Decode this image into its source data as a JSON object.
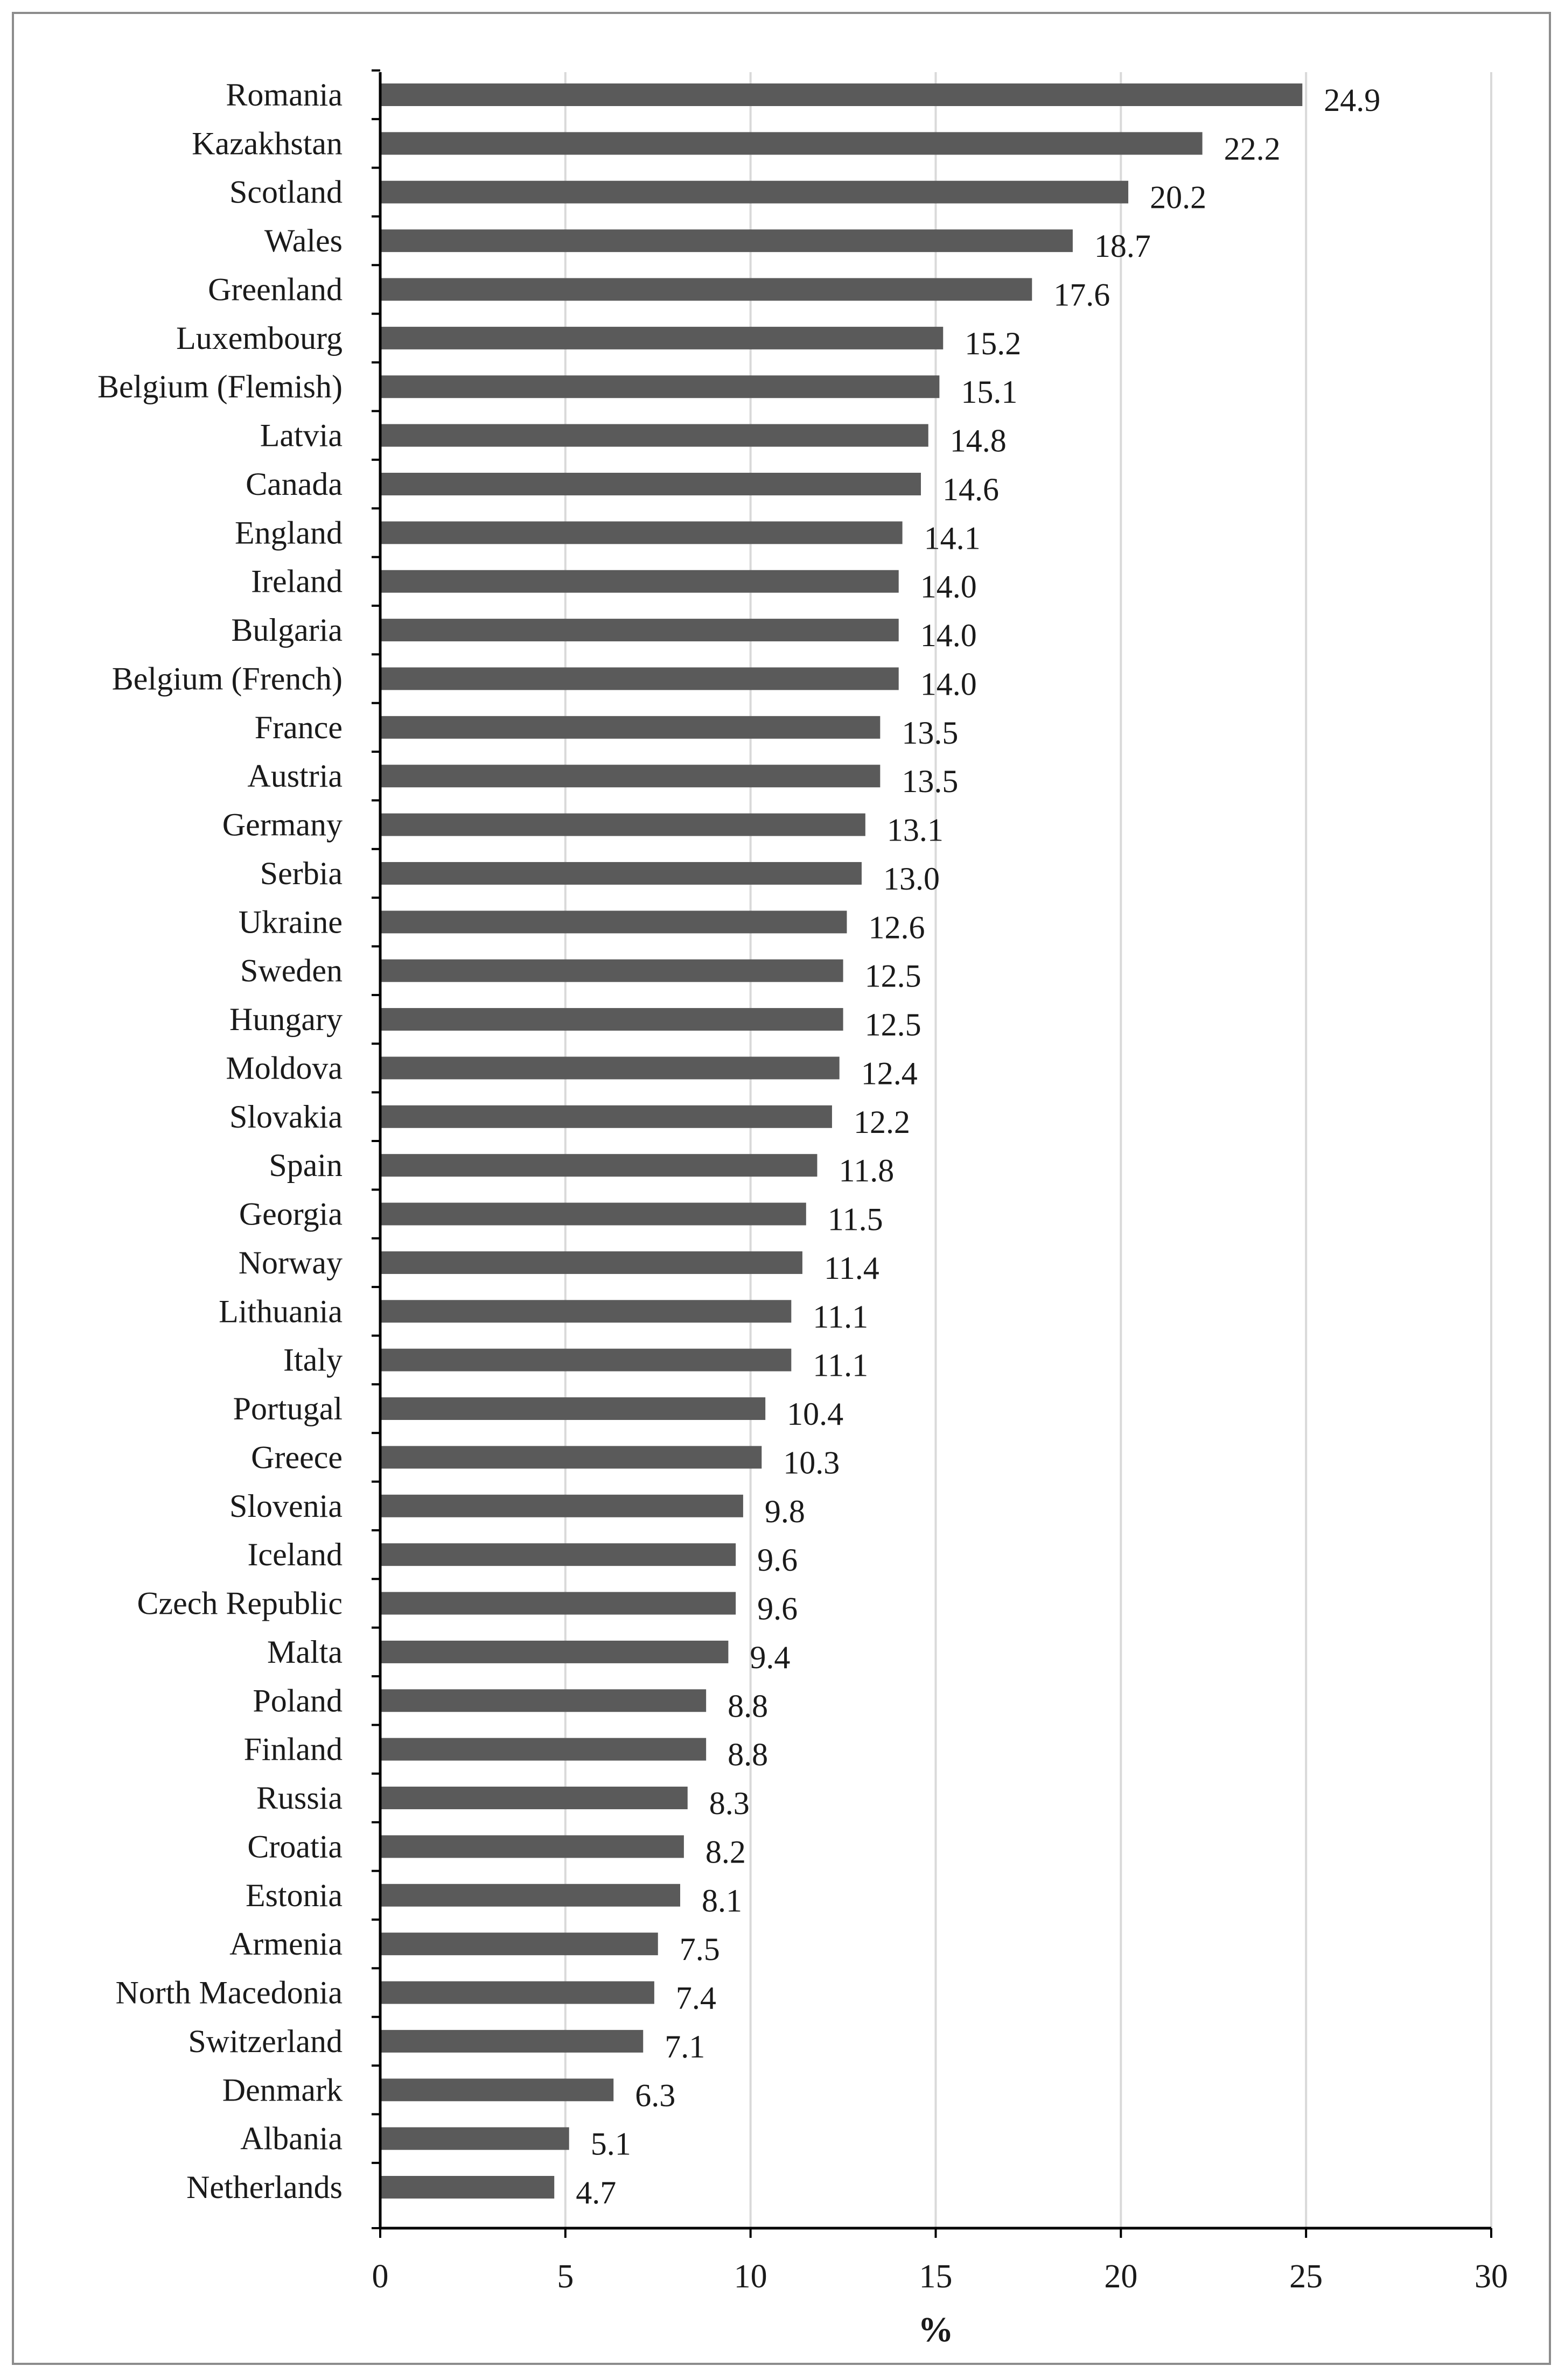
{
  "chart_data": {
    "type": "bar",
    "orientation": "horizontal",
    "categories": [
      "Romania",
      "Kazakhstan",
      "Scotland",
      "Wales",
      "Greenland",
      "Luxembourg",
      "Belgium (Flemish)",
      "Latvia",
      "Canada",
      "England",
      "Ireland",
      "Bulgaria",
      "Belgium (French)",
      "France",
      "Austria",
      "Germany",
      "Serbia",
      "Ukraine",
      "Sweden",
      "Hungary",
      "Moldova",
      "Slovakia",
      "Spain",
      "Georgia",
      "Norway",
      "Lithuania",
      "Italy",
      "Portugal",
      "Greece",
      "Slovenia",
      "Iceland",
      "Czech Republic",
      "Malta",
      "Poland",
      "Finland",
      "Russia",
      "Croatia",
      "Estonia",
      "Armenia",
      "North Macedonia",
      "Switzerland",
      "Denmark",
      "Albania",
      "Netherlands"
    ],
    "values": [
      24.9,
      22.2,
      20.2,
      18.7,
      17.6,
      15.2,
      15.1,
      14.8,
      14.6,
      14.1,
      14.0,
      14.0,
      14.0,
      13.5,
      13.5,
      13.1,
      13.0,
      12.6,
      12.5,
      12.5,
      12.4,
      12.2,
      11.8,
      11.5,
      11.4,
      11.1,
      11.1,
      10.4,
      10.3,
      9.8,
      9.6,
      9.6,
      9.4,
      8.8,
      8.8,
      8.3,
      8.2,
      8.1,
      7.5,
      7.4,
      7.1,
      6.3,
      5.1,
      4.7
    ],
    "value_labels": [
      "24.9",
      "22.2",
      "20.2",
      "18.7",
      "17.6",
      "15.2",
      "15.1",
      "14.8",
      "14.6",
      "14.1",
      "14.0",
      "14.0",
      "14.0",
      "13.5",
      "13.5",
      "13.1",
      "13.0",
      "12.6",
      "12.5",
      "12.5",
      "12.4",
      "12.2",
      "11.8",
      "11.5",
      "11.4",
      "11.1",
      "11.1",
      "10.4",
      "10.3",
      "9.8",
      "9.6",
      "9.6",
      "9.4",
      "8.8",
      "8.8",
      "8.3",
      "8.2",
      "8.1",
      "7.5",
      "7.4",
      "7.1",
      "6.3",
      "5.1",
      "4.7"
    ],
    "xlabel": "%",
    "ylabel": "",
    "title": "",
    "xlim": [
      0,
      30
    ],
    "xticks": [
      "0",
      "5",
      "10",
      "15",
      "20",
      "25",
      "30"
    ],
    "grid": "vertical",
    "bar_color": "#5a5a5a",
    "grid_color": "#d9d9d9",
    "axis_color": "#000000"
  }
}
